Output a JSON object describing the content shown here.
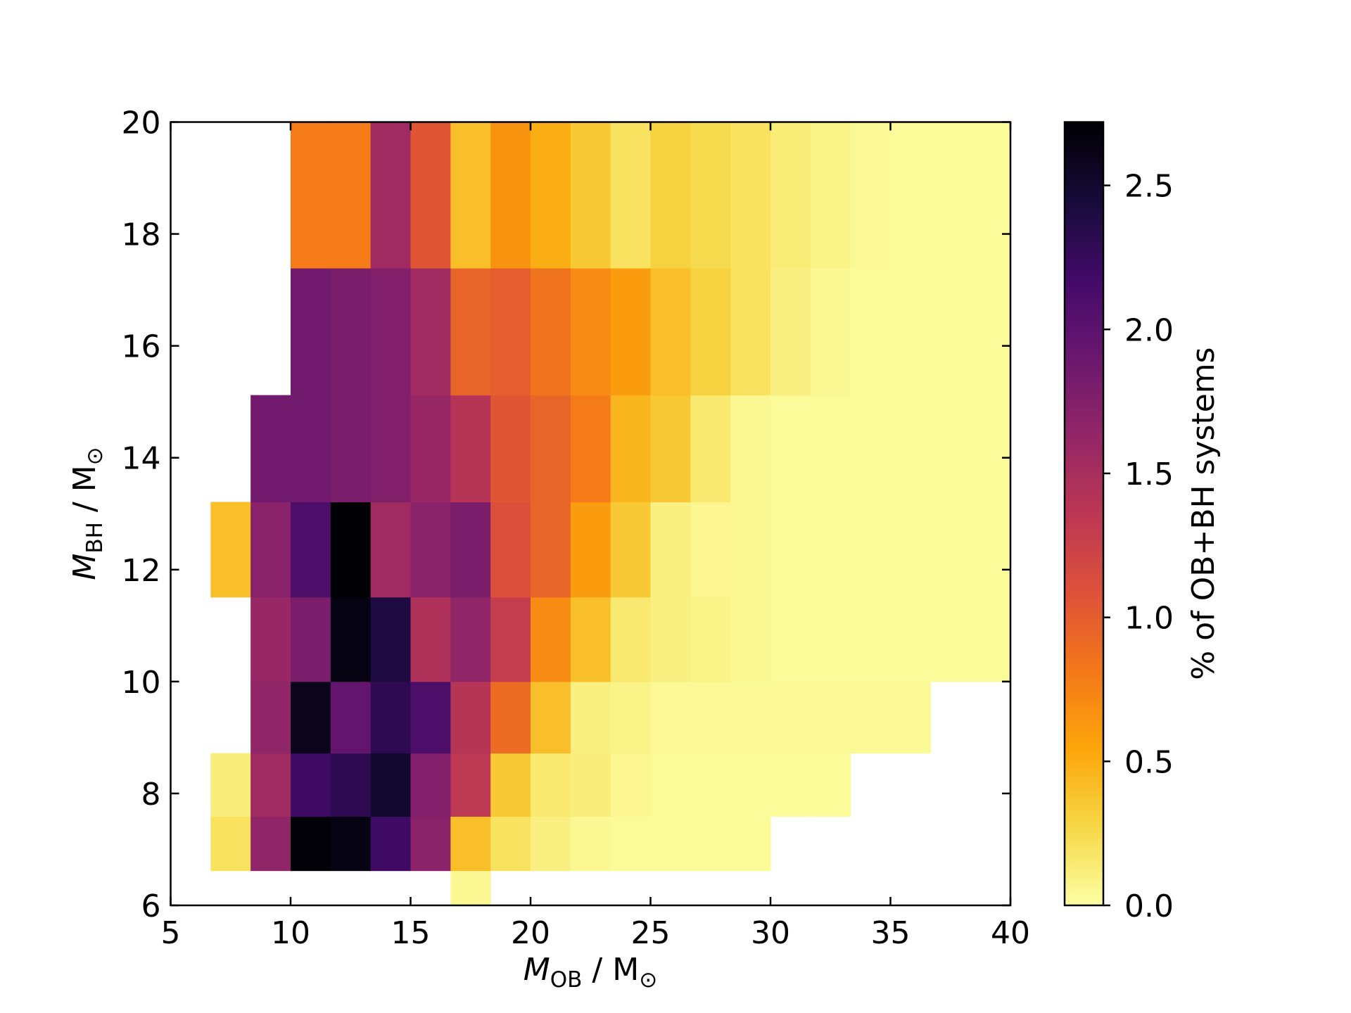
{
  "chart_data": {
    "type": "heatmap",
    "xlabel": {
      "symbol": "M",
      "subscript": "OB",
      "unit": " / M",
      "unit_subscript": "⊙"
    },
    "ylabel": {
      "symbol": "M",
      "subscript": "BH",
      "unit": " / M",
      "unit_subscript": "⊙"
    },
    "colorbar_label": "% of OB+BH systems",
    "colormap": "inferno_r",
    "x": [
      5,
      6.667,
      8.333,
      10,
      11.667,
      13.333,
      15,
      16.667,
      18.333,
      20,
      21.667,
      23.333,
      25,
      26.667,
      28.333,
      30,
      31.667,
      33.333,
      35,
      36.667,
      38.333,
      40
    ],
    "y": [
      6,
      6.62,
      7.59,
      8.72,
      10,
      11.51,
      13.21,
      15.12,
      17.39,
      20
    ],
    "values": [
      [
        null,
        null,
        null,
        null,
        null,
        null,
        null,
        0.05,
        null,
        null,
        null,
        null,
        null,
        null,
        null,
        null,
        null,
        null,
        null,
        null,
        null
      ],
      [
        null,
        0.2,
        1.65,
        2.7,
        2.65,
        2.2,
        1.7,
        0.4,
        0.2,
        0.1,
        0.05,
        0.03,
        0.03,
        0.03,
        0.03,
        null,
        null,
        null,
        null,
        null,
        null
      ],
      [
        null,
        0.12,
        1.55,
        2.2,
        2.3,
        2.5,
        1.75,
        1.35,
        0.35,
        0.15,
        0.12,
        0.06,
        0.03,
        0.03,
        0.03,
        0.03,
        0.03,
        null,
        null,
        null,
        null
      ],
      [
        null,
        null,
        1.65,
        2.6,
        1.95,
        2.3,
        2.1,
        1.4,
        0.9,
        0.4,
        0.1,
        0.08,
        0.04,
        0.04,
        0.04,
        0.04,
        0.04,
        0.04,
        0.04,
        null,
        null
      ],
      [
        null,
        null,
        1.6,
        1.8,
        2.65,
        2.4,
        1.45,
        1.65,
        1.3,
        0.7,
        0.4,
        0.15,
        0.1,
        0.08,
        0.05,
        0.03,
        0.03,
        0.03,
        0.03,
        0.03,
        0.03
      ],
      [
        null,
        0.4,
        1.7,
        2.1,
        2.72,
        1.55,
        1.7,
        1.8,
        1.1,
        0.95,
        0.6,
        0.35,
        0.1,
        0.06,
        0.05,
        0.03,
        0.03,
        0.03,
        0.03,
        0.03,
        0.03
      ],
      [
        null,
        null,
        1.85,
        1.85,
        1.8,
        1.75,
        1.6,
        1.4,
        1.05,
        0.95,
        0.8,
        0.45,
        0.35,
        0.15,
        0.05,
        0.03,
        0.03,
        0.03,
        0.03,
        0.03,
        0.03
      ],
      [
        null,
        null,
        null,
        1.85,
        1.8,
        1.75,
        1.55,
        0.95,
        1.0,
        0.85,
        0.7,
        0.6,
        0.4,
        0.3,
        0.2,
        0.1,
        0.05,
        0.03,
        0.03,
        0.03,
        0.03
      ],
      [
        null,
        null,
        null,
        0.8,
        0.8,
        1.55,
        1.05,
        0.4,
        0.65,
        0.5,
        0.35,
        0.2,
        0.3,
        0.25,
        0.2,
        0.13,
        0.08,
        0.04,
        0.03,
        0.03,
        0.03
      ]
    ],
    "xlim": [
      5,
      40
    ],
    "xticks": [
      5,
      10,
      15,
      20,
      25,
      30,
      35,
      40
    ],
    "ylim": [
      6,
      20
    ],
    "yticks": [
      6,
      8,
      10,
      12,
      14,
      16,
      18,
      20
    ],
    "clim": [
      0,
      2.72
    ],
    "cticks": [
      {
        "value": 0,
        "label": "0.0"
      },
      0.5,
      {
        "value": 1,
        "label": "1.0"
      },
      1.5,
      {
        "value": 2,
        "label": "2.0"
      },
      2.5
    ]
  }
}
